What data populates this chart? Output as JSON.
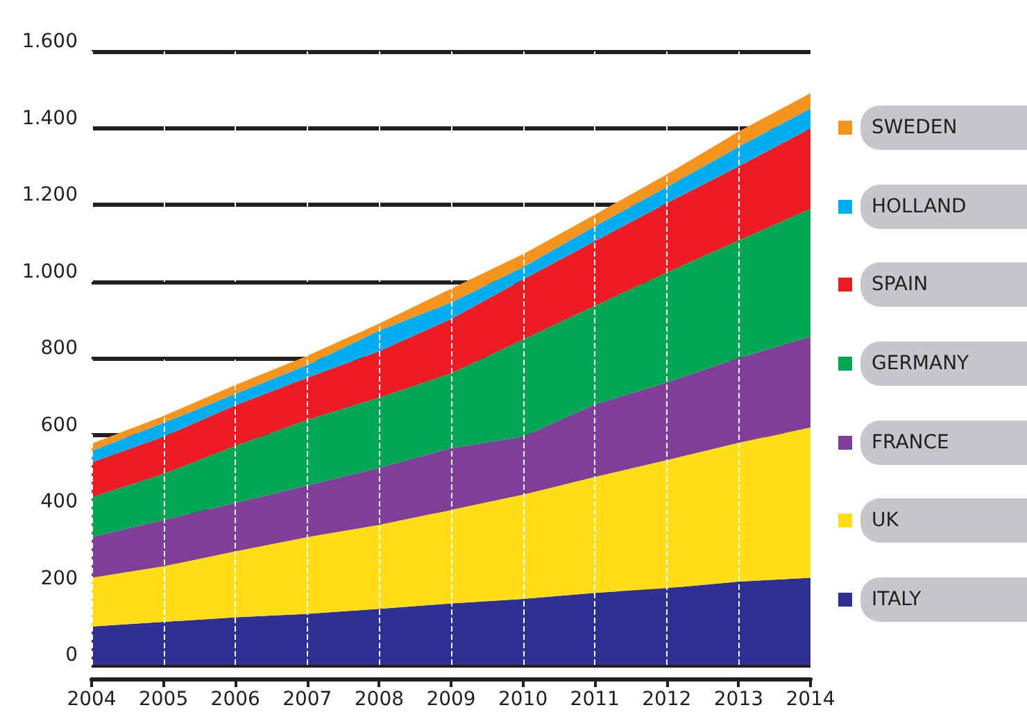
{
  "chart_data": {
    "type": "area",
    "stacked": true,
    "categories": [
      "2004",
      "2005",
      "2006",
      "2007",
      "2008",
      "2009",
      "2010",
      "2011",
      "2012",
      "2013",
      "2014"
    ],
    "series": [
      {
        "name": "ITALY",
        "color": "#2e3192",
        "values": [
          100,
          112,
          124,
          133,
          146,
          160,
          172,
          188,
          200,
          217,
          227
        ]
      },
      {
        "name": "UK",
        "color": "#ffde17",
        "values": [
          127,
          145,
          172,
          200,
          219,
          244,
          272,
          302,
          334,
          362,
          392
        ]
      },
      {
        "name": "FRANCE",
        "color": "#7f3f98",
        "values": [
          106,
          121,
          126,
          135,
          149,
          161,
          151,
          189,
          202,
          221,
          237
        ]
      },
      {
        "name": "GERMANY",
        "color": "#00a651",
        "values": [
          104,
          120,
          149,
          171,
          183,
          195,
          253,
          257,
          287,
          307,
          333
        ]
      },
      {
        "name": "SPAIN",
        "color": "#ed1c24",
        "values": [
          91,
          97,
          106,
          110,
          121,
          142,
          157,
          169,
          181,
          193,
          210
        ]
      },
      {
        "name": "HOLLAND",
        "color": "#00aeef",
        "values": [
          30,
          36,
          30,
          33,
          54,
          43,
          32,
          39,
          42,
          51,
          52
        ]
      },
      {
        "name": "SWEDEN",
        "color": "#f7941d",
        "values": [
          19,
          18,
          23,
          24,
          18,
          36,
          34,
          30,
          33,
          40,
          40
        ]
      }
    ],
    "ylim": [
      0,
      1600
    ],
    "yticks": [
      0,
      200,
      400,
      600,
      800,
      {
        "value": 1000,
        "label": "1.000"
      },
      {
        "value": 1200,
        "label": "1.200"
      },
      {
        "value": 1400,
        "label": "1.400"
      },
      {
        "value": 1600,
        "label": "1.600"
      }
    ],
    "grid": true,
    "legend": "right"
  }
}
